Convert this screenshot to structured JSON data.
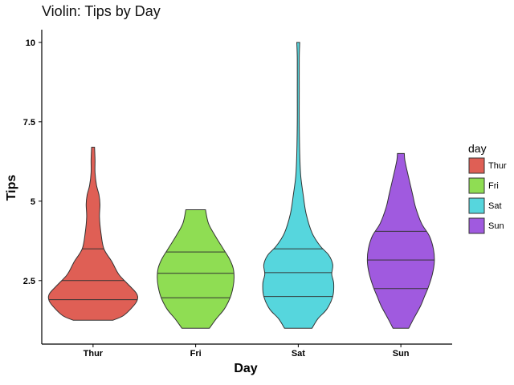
{
  "chart_data": {
    "type": "violin",
    "title": "Violin: Tips by Day",
    "xlabel": "Day",
    "ylabel": "Tips",
    "categories": [
      "Thur",
      "Fri",
      "Sat",
      "Sun"
    ],
    "yticks": [
      2.5,
      5,
      7.5,
      10
    ],
    "ytick_labels": [
      "2.5",
      "5",
      "7.5",
      "10"
    ],
    "ylim": [
      0.5,
      10.4
    ],
    "legend": {
      "title": "day",
      "placement": "right"
    },
    "colors": [
      "#df5f55",
      "#8fdd53",
      "#56d6dd",
      "#a05adf"
    ],
    "series": [
      {
        "name": "Thur",
        "min": 1.25,
        "max": 6.7,
        "quartiles": [
          1.9,
          2.5,
          3.5
        ],
        "profile": [
          [
            1.25,
            0.4
          ],
          [
            1.4,
            0.62
          ],
          [
            1.7,
            0.82
          ],
          [
            1.9,
            0.9
          ],
          [
            2.1,
            0.88
          ],
          [
            2.4,
            0.7
          ],
          [
            2.7,
            0.52
          ],
          [
            3.1,
            0.38
          ],
          [
            3.5,
            0.22
          ],
          [
            4.0,
            0.16
          ],
          [
            4.5,
            0.13
          ],
          [
            4.9,
            0.14
          ],
          [
            5.2,
            0.12
          ],
          [
            5.5,
            0.07
          ],
          [
            5.9,
            0.04
          ],
          [
            6.3,
            0.04
          ],
          [
            6.7,
            0.03
          ]
        ]
      },
      {
        "name": "Fri",
        "min": 1.0,
        "max": 4.73,
        "quartiles": [
          1.96,
          2.73,
          3.4
        ],
        "profile": [
          [
            1.0,
            0.28
          ],
          [
            1.3,
            0.42
          ],
          [
            1.6,
            0.58
          ],
          [
            1.96,
            0.7
          ],
          [
            2.3,
            0.76
          ],
          [
            2.6,
            0.78
          ],
          [
            2.9,
            0.76
          ],
          [
            3.2,
            0.68
          ],
          [
            3.5,
            0.56
          ],
          [
            3.9,
            0.4
          ],
          [
            4.3,
            0.26
          ],
          [
            4.73,
            0.2
          ]
        ]
      },
      {
        "name": "Sat",
        "min": 1.0,
        "max": 10.0,
        "quartiles": [
          2.0,
          2.75,
          3.5
        ],
        "profile": [
          [
            1.0,
            0.28
          ],
          [
            1.3,
            0.4
          ],
          [
            1.6,
            0.58
          ],
          [
            2.0,
            0.7
          ],
          [
            2.4,
            0.72
          ],
          [
            2.7,
            0.68
          ],
          [
            3.0,
            0.7
          ],
          [
            3.3,
            0.62
          ],
          [
            3.6,
            0.44
          ],
          [
            4.0,
            0.28
          ],
          [
            4.6,
            0.16
          ],
          [
            5.2,
            0.1
          ],
          [
            5.8,
            0.05
          ],
          [
            6.5,
            0.03
          ],
          [
            7.5,
            0.02
          ],
          [
            8.5,
            0.02
          ],
          [
            9.5,
            0.02
          ],
          [
            10.0,
            0.03
          ]
        ]
      },
      {
        "name": "Sun",
        "min": 1.0,
        "max": 6.5,
        "quartiles": [
          2.25,
          3.15,
          4.05
        ],
        "profile": [
          [
            1.0,
            0.16
          ],
          [
            1.3,
            0.26
          ],
          [
            1.7,
            0.4
          ],
          [
            2.0,
            0.48
          ],
          [
            2.3,
            0.56
          ],
          [
            2.7,
            0.64
          ],
          [
            3.1,
            0.68
          ],
          [
            3.5,
            0.66
          ],
          [
            3.9,
            0.58
          ],
          [
            4.3,
            0.42
          ],
          [
            4.8,
            0.3
          ],
          [
            5.2,
            0.24
          ],
          [
            5.6,
            0.18
          ],
          [
            6.0,
            0.12
          ],
          [
            6.3,
            0.08
          ],
          [
            6.5,
            0.07
          ]
        ]
      }
    ]
  }
}
